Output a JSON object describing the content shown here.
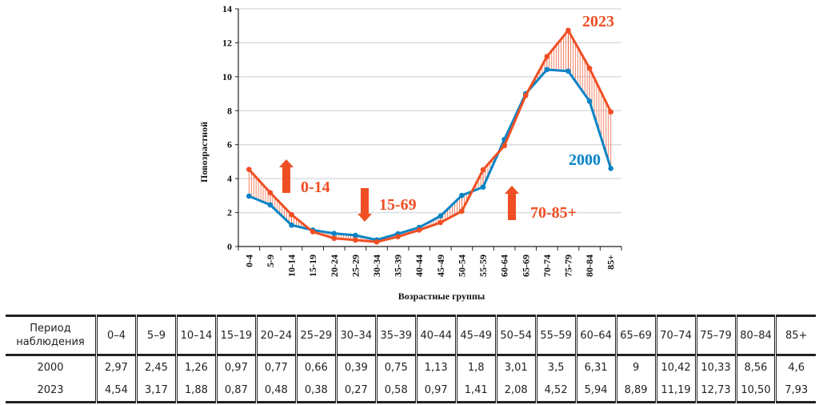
{
  "chart_data": {
    "type": "line",
    "title": "",
    "xlabel": "Возрастные группы",
    "ylabel": "Повозрастной",
    "ylim": [
      0,
      14
    ],
    "yticks": [
      0,
      2,
      4,
      6,
      8,
      10,
      12,
      14
    ],
    "grid": true,
    "categories": [
      "0-4",
      "5-9",
      "10-14",
      "15-19",
      "20-24",
      "25-29",
      "30-34",
      "35-39",
      "40-44",
      "45-49",
      "50-54",
      "55-59",
      "60-64",
      "65-69",
      "70-74",
      "75-79",
      "80-84",
      "85+"
    ],
    "series": [
      {
        "name": "2000",
        "color": "#0A84C6",
        "values": [
          2.97,
          2.45,
          1.26,
          0.97,
          0.77,
          0.66,
          0.39,
          0.75,
          1.13,
          1.8,
          3.01,
          3.5,
          6.31,
          9,
          10.42,
          10.33,
          8.56,
          4.6
        ]
      },
      {
        "name": "2023",
        "color": "#F04E23",
        "values": [
          4.54,
          3.17,
          1.88,
          0.87,
          0.48,
          0.38,
          0.27,
          0.58,
          0.97,
          1.41,
          2.08,
          4.52,
          5.94,
          8.89,
          11.19,
          12.73,
          10.5,
          7.93
        ]
      }
    ],
    "annotations": [
      {
        "text": "0-14",
        "direction": "up",
        "category": "10-14",
        "y": 3.5
      },
      {
        "text": "15-69",
        "direction": "down",
        "category": "35-39",
        "y": 2.4
      },
      {
        "text": "70-85+",
        "direction": "up",
        "category": "70-74",
        "y": 2.0
      }
    ],
    "series_labels": [
      {
        "text": "2023",
        "series": "2023"
      },
      {
        "text": "2000",
        "series": "2000"
      }
    ]
  },
  "table": {
    "header_label_line1": "Период",
    "header_label_line2": "наблюдения",
    "columns": [
      "0–4",
      "5–9",
      "10–14",
      "15–19",
      "20–24",
      "25–29",
      "30–34",
      "35–39",
      "40–44",
      "45–49",
      "50–54",
      "55–59",
      "60–64",
      "65–69",
      "70–74",
      "75–79",
      "80–84",
      "85+"
    ],
    "rows": [
      {
        "label": "2000",
        "values": [
          "2,97",
          "2,45",
          "1,26",
          "0,97",
          "0,77",
          "0,66",
          "0,39",
          "0,75",
          "1,13",
          "1,8",
          "3,01",
          "3,5",
          "6,31",
          "9",
          "10,42",
          "10,33",
          "8,56",
          "4,6"
        ]
      },
      {
        "label": "2023",
        "values": [
          "4,54",
          "3,17",
          "1,88",
          "0,87",
          "0,48",
          "0,38",
          "0,27",
          "0,58",
          "0,97",
          "1,41",
          "2,08",
          "4,52",
          "5,94",
          "8,89",
          "11,19",
          "12,73",
          "10,50",
          "7,93"
        ]
      }
    ]
  }
}
